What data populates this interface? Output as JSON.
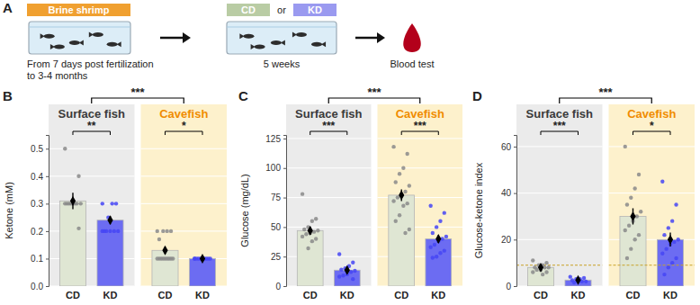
{
  "diagram": {
    "label": "A",
    "stage1": {
      "tag": "Brine shrimp",
      "caption": [
        "From 7 days post fertilization",
        "to 3-4 months"
      ]
    },
    "stage2": {
      "tags": [
        "CD",
        "KD"
      ],
      "joiner": "or",
      "caption": [
        "5 weeks"
      ]
    },
    "stage3": {
      "caption": [
        "Blood test"
      ]
    }
  },
  "chart_data": [
    {
      "type": "bar",
      "label": "B",
      "ylabel": "Ketone (mM)",
      "ylim": [
        0,
        0.55
      ],
      "yticks": [
        {
          "value": 0,
          "label": "0.0"
        },
        0.1,
        0.2,
        0.3,
        0.4,
        0.5
      ],
      "grid": true,
      "categories": [
        "CD",
        "KD"
      ],
      "colors": [
        "#dfe6d3",
        "#6c6cf2"
      ],
      "comparison": "***",
      "facets": [
        {
          "title": "Surface fish",
          "values": [
            0.31,
            0.24
          ],
          "errors": [
            0.03,
            0.015
          ],
          "comparison": "**",
          "points": [
            [
              0.5,
              0.4,
              0.3,
              0.3,
              0.3,
              0.3,
              0.3,
              0.3,
              0.3,
              0.3,
              0.21
            ],
            [
              0.3,
              0.3,
              0.3,
              0.25,
              0.2,
              0.2,
              0.2,
              0.2,
              0.2,
              0.2
            ]
          ]
        },
        {
          "title": "Cavefish",
          "values": [
            0.13,
            0.1
          ],
          "errors": [
            0.012,
            0
          ],
          "comparison": "*",
          "points": [
            [
              0.2,
              0.2,
              0.2,
              0.2,
              0.17,
              0.1,
              0.1,
              0.1,
              0.1,
              0.1,
              0.1,
              0.1,
              0.1,
              0.1
            ],
            [
              0.1,
              0.1,
              0.1,
              0.1,
              0.1,
              0.1,
              0.1,
              0.1,
              0.1,
              0.1
            ]
          ]
        }
      ]
    },
    {
      "type": "bar",
      "label": "C",
      "ylabel": "Glucose (mg/dL)",
      "ylim": [
        0,
        128
      ],
      "yticks": [
        0,
        25,
        50,
        75,
        100,
        125
      ],
      "grid": true,
      "categories": [
        "CD",
        "KD"
      ],
      "colors": [
        "#dfe6d3",
        "#6c6cf2"
      ],
      "comparison": "***",
      "facets": [
        {
          "title": "Surface fish",
          "values": [
            47,
            13.5
          ],
          "errors": [
            3.5,
            2
          ],
          "comparison": "***",
          "points": [
            [
              78,
              57,
              55,
              50,
              48,
              47,
              46,
              45,
              44,
              42,
              40,
              38,
              32
            ],
            [
              27,
              20,
              17,
              15,
              14,
              13,
              12,
              10,
              9,
              8,
              6
            ]
          ]
        },
        {
          "title": "Cavefish",
          "values": [
            77,
            40
          ],
          "errors": [
            5,
            3.5
          ],
          "comparison": "***",
          "points": [
            [
              118,
              112,
              100,
              95,
              88,
              85,
              80,
              78,
              75,
              72,
              70,
              68,
              60,
              55,
              48,
              45
            ],
            [
              68,
              62,
              55,
              50,
              45,
              42,
              40,
              38,
              35,
              33,
              30,
              28,
              25,
              24
            ]
          ]
        }
      ]
    },
    {
      "type": "bar",
      "label": "D",
      "ylabel": "Glucose-ketone index",
      "ylim": [
        0,
        65
      ],
      "yticks": [
        0,
        20,
        40,
        60
      ],
      "grid": true,
      "reference_line": 9,
      "categories": [
        "CD",
        "KD"
      ],
      "colors": [
        "#dfe6d3",
        "#6c6cf2"
      ],
      "comparison": "***",
      "facets": [
        {
          "title": "Surface fish",
          "values": [
            8,
            2.6
          ],
          "errors": [
            0.6,
            0.3
          ],
          "comparison": "***",
          "points": [
            [
              11,
              10,
              9,
              9,
              8,
              8,
              8,
              7,
              7,
              6,
              6,
              5
            ],
            [
              4,
              3.5,
              3,
              3,
              2.5,
              2,
              2,
              1.8,
              1.5
            ]
          ]
        },
        {
          "title": "Cavefish",
          "values": [
            30,
            20
          ],
          "errors": [
            3.5,
            3
          ],
          "comparison": "*",
          "points": [
            [
              60,
              48,
              42,
              38,
              35,
              32,
              30,
              28,
              26,
              24,
              22,
              20,
              16,
              12
            ],
            [
              45,
              35,
              28,
              25,
              22,
              20,
              19,
              18,
              16,
              14,
              12,
              10,
              8,
              5
            ]
          ]
        }
      ]
    }
  ]
}
